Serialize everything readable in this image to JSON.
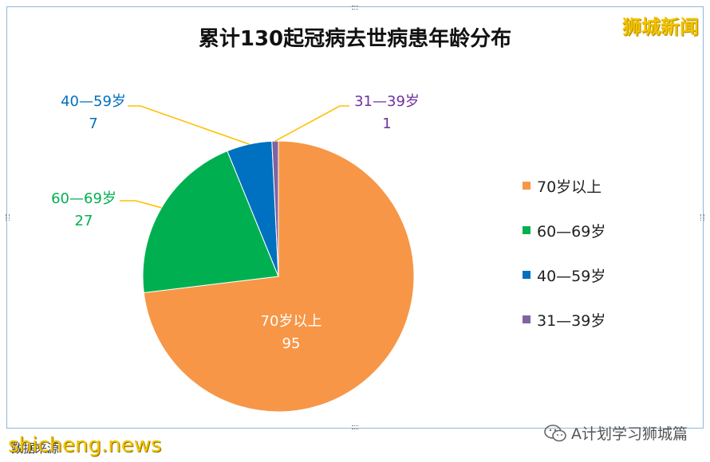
{
  "brand": {
    "logo_text": "狮城新闻",
    "footer_url": "shicheng.news",
    "wechat_account": "A计划学习狮城篇",
    "footer_note": "数据来源"
  },
  "chart_data": {
    "type": "pie",
    "title": "累计130起冠病去世病患年龄分布",
    "slices": [
      {
        "label": "70岁以上",
        "value": 95,
        "color": "#f79646",
        "label_color": "#ffffff"
      },
      {
        "label": "60—69岁",
        "value": 27,
        "color": "#00b050",
        "label_color": "#00b050"
      },
      {
        "label": "40—59岁",
        "value": 7,
        "color": "#0070c0",
        "label_color": "#0070c0"
      },
      {
        "label": "31—39岁",
        "value": 1,
        "color": "#8064a2",
        "label_color": "#7030a0"
      }
    ],
    "legend_position": "right",
    "leader_line_color": "#ffc000"
  }
}
